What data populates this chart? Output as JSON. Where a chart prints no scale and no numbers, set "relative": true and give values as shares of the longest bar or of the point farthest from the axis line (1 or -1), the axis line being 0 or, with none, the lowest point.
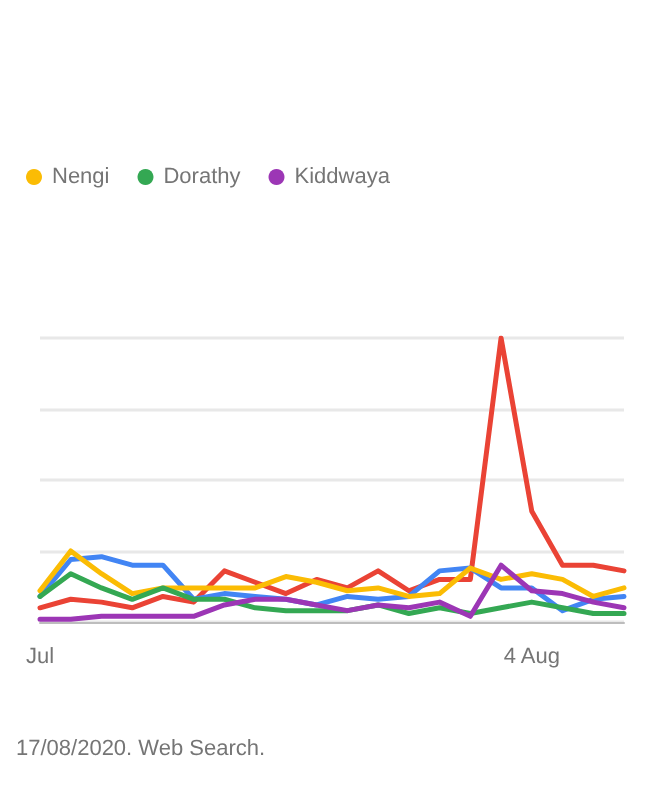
{
  "chart_data": {
    "type": "line",
    "relative": true,
    "categories": [
      "Jul",
      null,
      null,
      null,
      null,
      null,
      null,
      null,
      null,
      null,
      null,
      null,
      null,
      null,
      null,
      null,
      "4 Aug",
      null,
      null,
      null
    ],
    "series": [
      {
        "color": "#ea4335",
        "values": [
          0.05,
          0.08,
          0.07,
          0.05,
          0.09,
          0.07,
          0.18,
          0.14,
          0.1,
          0.15,
          0.12,
          0.18,
          0.11,
          0.15,
          0.15,
          1,
          0.39,
          0.2,
          0.2,
          0.18
        ]
      },
      {
        "color": "#4285f4",
        "values": [
          0.09,
          0.22,
          0.23,
          0.2,
          0.2,
          0.08,
          0.1,
          0.09,
          0.08,
          0.06,
          0.09,
          0.08,
          0.09,
          0.18,
          0.19,
          0.12,
          0.12,
          0.04,
          0.08,
          0.09
        ]
      },
      {
        "name": "Nengi",
        "color": "#fbbc04",
        "values": [
          0.11,
          0.25,
          0.17,
          0.1,
          0.12,
          0.12,
          0.12,
          0.12,
          0.16,
          0.14,
          0.11,
          0.12,
          0.09,
          0.1,
          0.19,
          0.15,
          0.17,
          0.15,
          0.09,
          0.12
        ]
      },
      {
        "name": "Dorathy",
        "color": "#34a853",
        "values": [
          0.09,
          0.17,
          0.12,
          0.08,
          0.12,
          0.08,
          0.08,
          0.05,
          0.04,
          0.04,
          0.04,
          0.06,
          0.03,
          0.05,
          0.03,
          0.05,
          0.07,
          0.05,
          0.03,
          0.03
        ]
      },
      {
        "name": "Kiddwaya",
        "color": "#9c36b5",
        "values": [
          0.01,
          0.01,
          0.02,
          0.02,
          0.02,
          0.02,
          0.06,
          0.08,
          0.08,
          0.06,
          0.04,
          0.06,
          0.05,
          0.07,
          0.02,
          0.2,
          0.11,
          0.1,
          0.07,
          0.05
        ]
      }
    ],
    "grid": "y",
    "legend": "top left",
    "marker": "none",
    "line_style": "solid",
    "annotations": [
      "17/08/2020. Web Search."
    ]
  }
}
